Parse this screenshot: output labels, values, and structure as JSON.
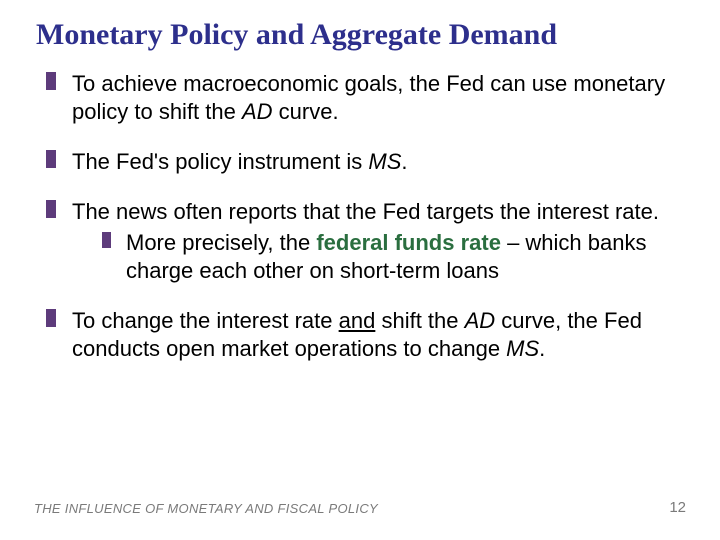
{
  "title": "Monetary Policy and Aggregate Demand",
  "bullets": {
    "b0": {
      "pre": "To achieve macroeconomic goals, the Fed can use monetary policy to shift the ",
      "ad": "AD",
      "post": " curve."
    },
    "b1": {
      "pre": "The Fed's policy instrument is ",
      "ms": "MS",
      "post": "."
    },
    "b2": {
      "line": "The news often reports that the Fed targets the interest rate.",
      "sub_pre": "More precisely, the ",
      "sub_bold": "federal funds rate",
      "sub_post": " – which banks charge each other on short-term loans"
    },
    "b3": {
      "pre": "To change the interest rate ",
      "and": "and",
      "mid": " shift the ",
      "ad": "AD",
      "mid2": " curve, the Fed conducts open market operations to change ",
      "ms": "MS",
      "post": "."
    }
  },
  "footer": "THE INFLUENCE OF MONETARY AND FISCAL POLICY",
  "page": "12",
  "colors": {
    "title": "#2d2f8c",
    "bullet": "#5d3b7b",
    "body": "#000000",
    "accent": "#2a6e3f",
    "muted": "#7a7a7a",
    "bg": "#ffffff"
  },
  "fonts": {
    "title_family": "Garamond",
    "title_size_pt": 22,
    "body_size_pt": 17,
    "footer_size_pt": 10
  }
}
